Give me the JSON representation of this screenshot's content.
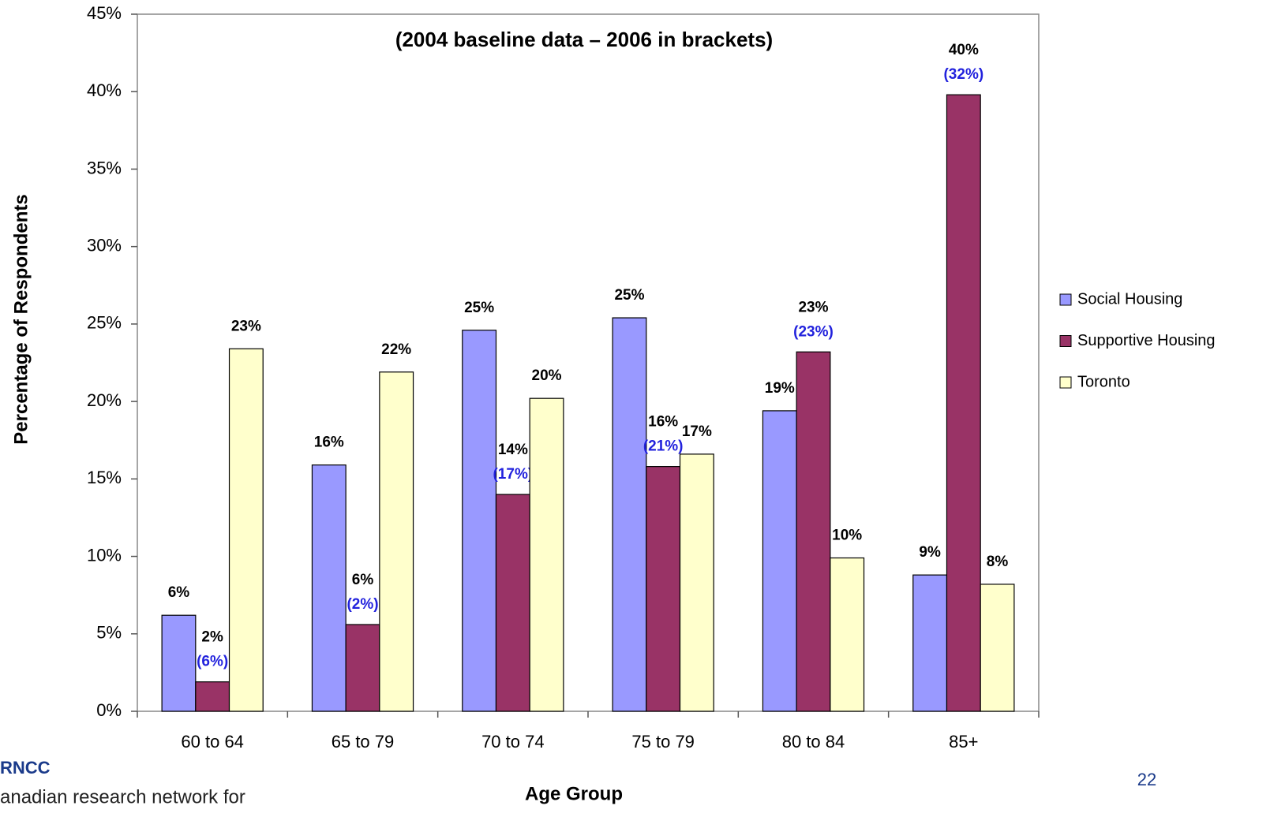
{
  "chart_data": {
    "type": "bar",
    "title": "(2004 baseline data – 2006 in brackets)",
    "x_label": "Age Group",
    "y_label": "Percentage of Respondents",
    "categories": [
      "60 to 64",
      "65 to 79",
      "70 to 74",
      "75 to 79",
      "80 to 84",
      "85+"
    ],
    "series": [
      {
        "name": "Social Housing",
        "color": "#9999ff",
        "values": [
          6.2,
          15.9,
          24.6,
          25.4,
          19.4,
          8.8
        ],
        "value_labels": [
          "6%",
          "16%",
          "25%",
          "25%",
          "19%",
          "9%"
        ]
      },
      {
        "name": "Supportive Housing",
        "color": "#993366",
        "values": [
          1.9,
          5.6,
          14.0,
          15.8,
          23.2,
          39.8
        ],
        "value_labels": [
          "2%",
          "6%",
          "14%",
          "16%",
          "23%",
          "40%"
        ],
        "bracket_labels": [
          "(6%)",
          "(2%)",
          "(17%)",
          "(21%)",
          "(23%)",
          "(32%)"
        ]
      },
      {
        "name": "Toronto",
        "color": "#ffffcc",
        "values": [
          23.4,
          21.9,
          20.2,
          16.6,
          9.9,
          8.2
        ],
        "value_labels": [
          "23%",
          "22%",
          "20%",
          "17%",
          "10%",
          "8%"
        ]
      }
    ],
    "ylim": [
      0,
      45
    ],
    "yticks": [
      {
        "value": 0,
        "label": "0%"
      },
      {
        "value": 5,
        "label": "5%"
      },
      {
        "value": 10,
        "label": "10%"
      },
      {
        "value": 15,
        "label": "15%"
      },
      {
        "value": 20,
        "label": "20%"
      },
      {
        "value": 25,
        "label": "25%"
      },
      {
        "value": 30,
        "label": "30%"
      },
      {
        "value": 35,
        "label": "35%"
      },
      {
        "value": 40,
        "label": "40%"
      },
      {
        "value": 45,
        "label": "45%"
      }
    ],
    "grid": false,
    "legend": "right"
  },
  "footer": {
    "logo": "RNCC",
    "logo_text": "anadian research network for",
    "page_number": "22"
  }
}
